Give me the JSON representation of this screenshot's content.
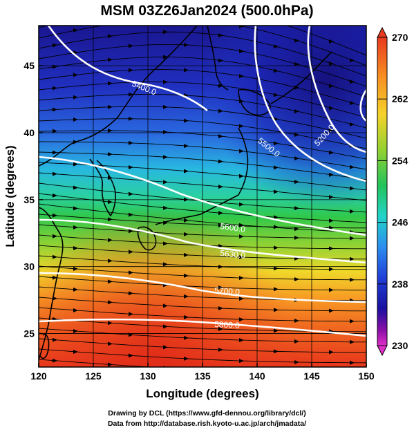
{
  "title": "MSM 03Z26Jan2024 (500.0hPa)",
  "map": {
    "lon_range": [
      120,
      150
    ],
    "lat_range": [
      22.5,
      48
    ],
    "x_ticks": [
      "120",
      "125",
      "130",
      "135",
      "140",
      "145",
      "150"
    ],
    "y_ticks": [
      "25",
      "30",
      "35",
      "40",
      "45"
    ],
    "xlabel": "Longitude (degrees)",
    "ylabel": "Latitude  (degrees)",
    "contours": [
      {
        "value": 5200,
        "label": "5200.0"
      },
      {
        "value": 5400,
        "label": "5400.0"
      },
      {
        "value": 5500,
        "label": "5500.0"
      },
      {
        "value": 5600,
        "label": "5600.0"
      },
      {
        "value": 5630,
        "label": "5630.0"
      },
      {
        "value": 5700,
        "label": "5700.0"
      },
      {
        "value": 5800,
        "label": "5800.0"
      }
    ]
  },
  "colorbar": {
    "labels": [
      "270",
      "262",
      "254",
      "246",
      "238",
      "230"
    ],
    "colors": [
      "#e83a1e",
      "#f78a22",
      "#f5d22a",
      "#8fd132",
      "#22c35a",
      "#22d4c8",
      "#2a8ef0",
      "#2040d8",
      "#1a10a0",
      "#8a10a8",
      "#e030c8"
    ]
  },
  "credits": {
    "line1": "Drawing by DCL (https://www.gfd-dennou.org/library/dcl/)",
    "line2": "Data from http://database.rish.kyoto-u.ac.jp/arch/jmadata/"
  }
}
